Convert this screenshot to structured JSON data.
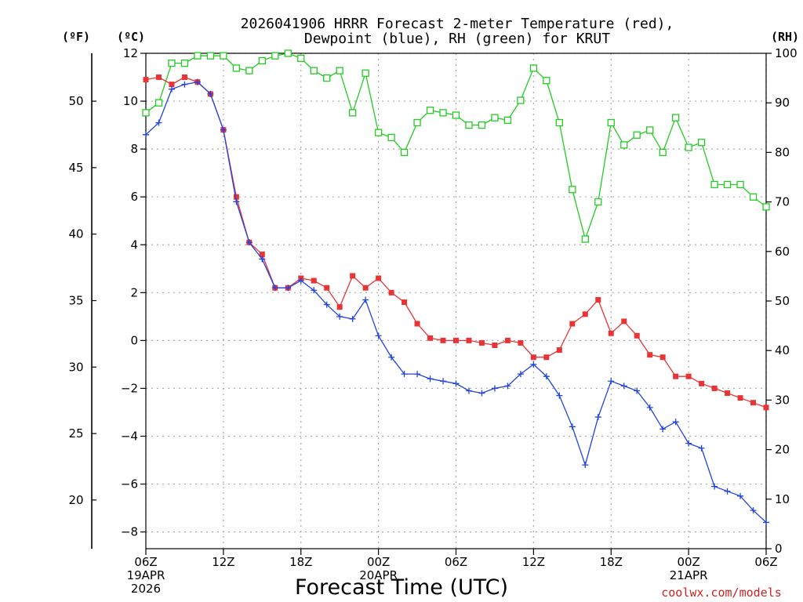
{
  "chart_data": {
    "type": "line",
    "title": [
      "2026041906 HRRR Forecast 2-meter Temperature (red),",
      "Dewpoint (blue), RH (green) for KRUT"
    ],
    "xlabel": "Forecast Time (UTC)",
    "credit": "coolwx.com/models",
    "unit_labels": {
      "left_outer": "(ºF)",
      "left_inner": "(ºC)",
      "right": "(RH)"
    },
    "x_hours": [
      0,
      1,
      2,
      3,
      4,
      5,
      6,
      7,
      8,
      9,
      10,
      11,
      12,
      13,
      14,
      15,
      16,
      17,
      18,
      19,
      20,
      21,
      22,
      23,
      24,
      25,
      26,
      27,
      28,
      29,
      30,
      31,
      32,
      33,
      34,
      35,
      36,
      37,
      38,
      39,
      40,
      41,
      42,
      43,
      44,
      45,
      46,
      47,
      48
    ],
    "xlim": [
      0,
      48
    ],
    "x_ticks": [
      {
        "hour": 0,
        "lines": [
          "06Z",
          "19APR",
          "2026"
        ]
      },
      {
        "hour": 6,
        "lines": [
          "12Z"
        ]
      },
      {
        "hour": 12,
        "lines": [
          "18Z"
        ]
      },
      {
        "hour": 18,
        "lines": [
          "00Z",
          "20APR"
        ]
      },
      {
        "hour": 24,
        "lines": [
          "06Z"
        ]
      },
      {
        "hour": 30,
        "lines": [
          "12Z"
        ]
      },
      {
        "hour": 36,
        "lines": [
          "18Z"
        ]
      },
      {
        "hour": 42,
        "lines": [
          "00Z",
          "21APR"
        ]
      },
      {
        "hour": 48,
        "lines": [
          "06Z"
        ]
      }
    ],
    "celsius_axis": {
      "ylim": [
        -8.7,
        12
      ],
      "ticks": [
        12,
        10,
        8,
        6,
        4,
        2,
        0,
        -2,
        -4,
        -6,
        -8
      ],
      "tick_labels": [
        "12",
        "10",
        "8",
        "6",
        "4",
        "2",
        "0",
        "−2",
        "−4",
        "−6",
        "−8"
      ]
    },
    "fahrenheit_axis": {
      "ticks": [
        50,
        45,
        40,
        35,
        30,
        25,
        20
      ],
      "tick_labels": [
        "50",
        "45",
        "40",
        "35",
        "30",
        "25",
        "20"
      ]
    },
    "rh_axis": {
      "ylim": [
        0,
        100
      ],
      "ticks": [
        100,
        90,
        80,
        70,
        60,
        50,
        40,
        30,
        20,
        10,
        0
      ],
      "tick_labels": [
        "100",
        "90",
        "80",
        "70",
        "60",
        "50",
        "40",
        "30",
        "20",
        "10",
        "0"
      ]
    },
    "series": [
      {
        "name": "Temperature",
        "units": "C",
        "color": "#e83434",
        "marker": "filled-square",
        "values": [
          10.9,
          11.0,
          10.7,
          11.0,
          10.8,
          10.3,
          8.8,
          6.0,
          4.1,
          3.6,
          2.2,
          2.2,
          2.6,
          2.5,
          2.2,
          1.4,
          2.7,
          2.2,
          2.6,
          2.0,
          1.6,
          0.7,
          0.1,
          0.0,
          0.0,
          0.0,
          -0.1,
          -0.2,
          0.0,
          -0.1,
          -0.7,
          -0.7,
          -0.4,
          0.7,
          1.1,
          1.7,
          0.3,
          0.8,
          0.2,
          -0.6,
          -0.7,
          -1.5,
          -1.5,
          -1.8,
          -2.0,
          -2.2,
          -2.4,
          -2.6,
          -2.8
        ]
      },
      {
        "name": "Dewpoint",
        "units": "C",
        "color": "#2244dd",
        "marker": "plus",
        "values": [
          8.6,
          9.1,
          10.5,
          10.7,
          10.8,
          10.3,
          8.8,
          5.8,
          4.1,
          3.4,
          2.2,
          2.2,
          2.5,
          2.1,
          1.5,
          1.0,
          0.9,
          1.7,
          0.2,
          -0.7,
          -1.4,
          -1.4,
          -1.6,
          -1.7,
          -1.8,
          -2.1,
          -2.2,
          -2.0,
          -1.9,
          -1.4,
          -1.0,
          -1.5,
          -2.3,
          -3.6,
          -5.2,
          -3.2,
          -1.7,
          -1.9,
          -2.1,
          -2.8,
          -3.7,
          -3.4,
          -4.3,
          -4.5,
          -6.1,
          -6.3,
          -6.5,
          -7.1,
          -7.6
        ]
      },
      {
        "name": "RH",
        "units": "%",
        "color": "#22cc22",
        "marker": "open-square",
        "values": [
          88,
          90,
          98,
          98,
          99.5,
          99.5,
          99.5,
          97,
          96.5,
          98.5,
          99.5,
          100,
          99,
          96.5,
          95,
          96.5,
          88,
          96,
          84,
          83,
          80,
          86,
          88.5,
          88,
          87.5,
          85.5,
          85.5,
          87,
          86.5,
          90.5,
          97,
          94.5,
          86,
          72.5,
          62.5,
          70,
          86,
          81.5,
          83.5,
          84.5,
          80,
          87,
          81,
          82,
          73.5,
          73.5,
          73.5,
          71,
          69
        ]
      }
    ]
  }
}
